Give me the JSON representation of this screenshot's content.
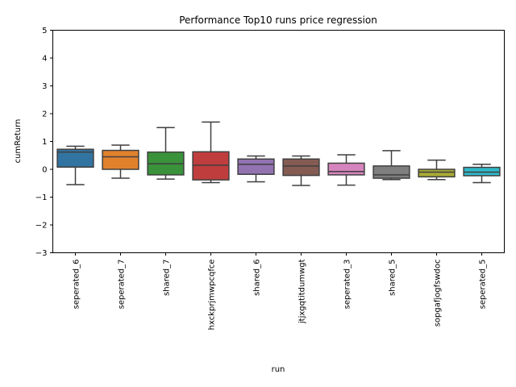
{
  "chart_data": {
    "type": "box",
    "title": "Performance Top10 runs price regression",
    "xlabel": "run",
    "ylabel": "cumReturn",
    "ylim": [
      -3,
      5
    ],
    "yticks": [
      -3,
      -2,
      -1,
      0,
      1,
      2,
      3,
      4,
      5
    ],
    "ytick_labels": [
      "−3",
      "−2",
      "−1",
      "0",
      "1",
      "2",
      "3",
      "4",
      "5"
    ],
    "grid": false,
    "categories": [
      "seperated_6",
      "seperated_7",
      "shared_7",
      "hxckprjmwpcqfce",
      "shared_6",
      "jtjxgqtitdumwgt",
      "seperated_3",
      "shared_5",
      "sopgafjogfswdoc",
      "seperated_5"
    ],
    "colors": [
      "#3274a1",
      "#e1812c",
      "#3a923a",
      "#c03d3e",
      "#9372b2",
      "#845b53",
      "#d684bd",
      "#7f7f7f",
      "#a9aa35",
      "#2eb8c9"
    ],
    "boxes": [
      {
        "whislo": -0.55,
        "q1": 0.08,
        "med": 0.62,
        "q3": 0.72,
        "whishi": 0.83
      },
      {
        "whislo": -0.32,
        "q1": 0.0,
        "med": 0.45,
        "q3": 0.68,
        "whishi": 0.87
      },
      {
        "whislo": -0.35,
        "q1": -0.2,
        "med": 0.2,
        "q3": 0.62,
        "whishi": 1.5
      },
      {
        "whislo": -0.48,
        "q1": -0.38,
        "med": 0.15,
        "q3": 0.63,
        "whishi": 1.7
      },
      {
        "whislo": -0.45,
        "q1": -0.18,
        "med": 0.18,
        "q3": 0.37,
        "whishi": 0.48
      },
      {
        "whislo": -0.58,
        "q1": -0.22,
        "med": 0.12,
        "q3": 0.37,
        "whishi": 0.48
      },
      {
        "whislo": -0.57,
        "q1": -0.2,
        "med": -0.08,
        "q3": 0.22,
        "whishi": 0.52
      },
      {
        "whislo": -0.37,
        "q1": -0.32,
        "med": -0.2,
        "q3": 0.12,
        "whishi": 0.67
      },
      {
        "whislo": -0.37,
        "q1": -0.27,
        "med": -0.1,
        "q3": 0.0,
        "whishi": 0.33
      },
      {
        "whislo": -0.48,
        "q1": -0.23,
        "med": -0.1,
        "q3": 0.07,
        "whishi": 0.18
      }
    ]
  }
}
